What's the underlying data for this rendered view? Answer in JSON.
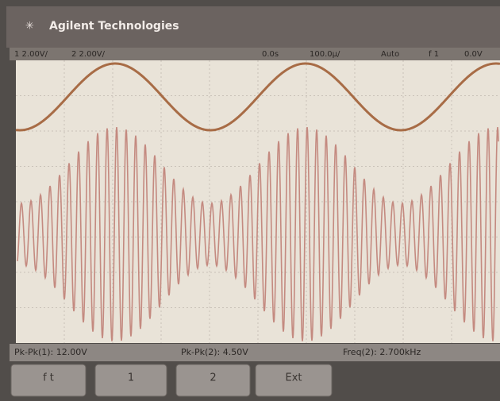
{
  "header": {
    "title": "Agilent Technologies"
  },
  "status": [
    "1 2.00V/",
    "2 2.00V/",
    "0.0s",
    "100.0μ/",
    "Auto",
    "f 1",
    "0.0V"
  ],
  "measurements": [
    "Pk-Pk(1): 12.00V",
    "Pk-Pk(2): 4.50V",
    "Freq(2): 2.700kHz"
  ],
  "softkeys": [
    "f   t",
    "1",
    "2",
    "Ext"
  ]
}
